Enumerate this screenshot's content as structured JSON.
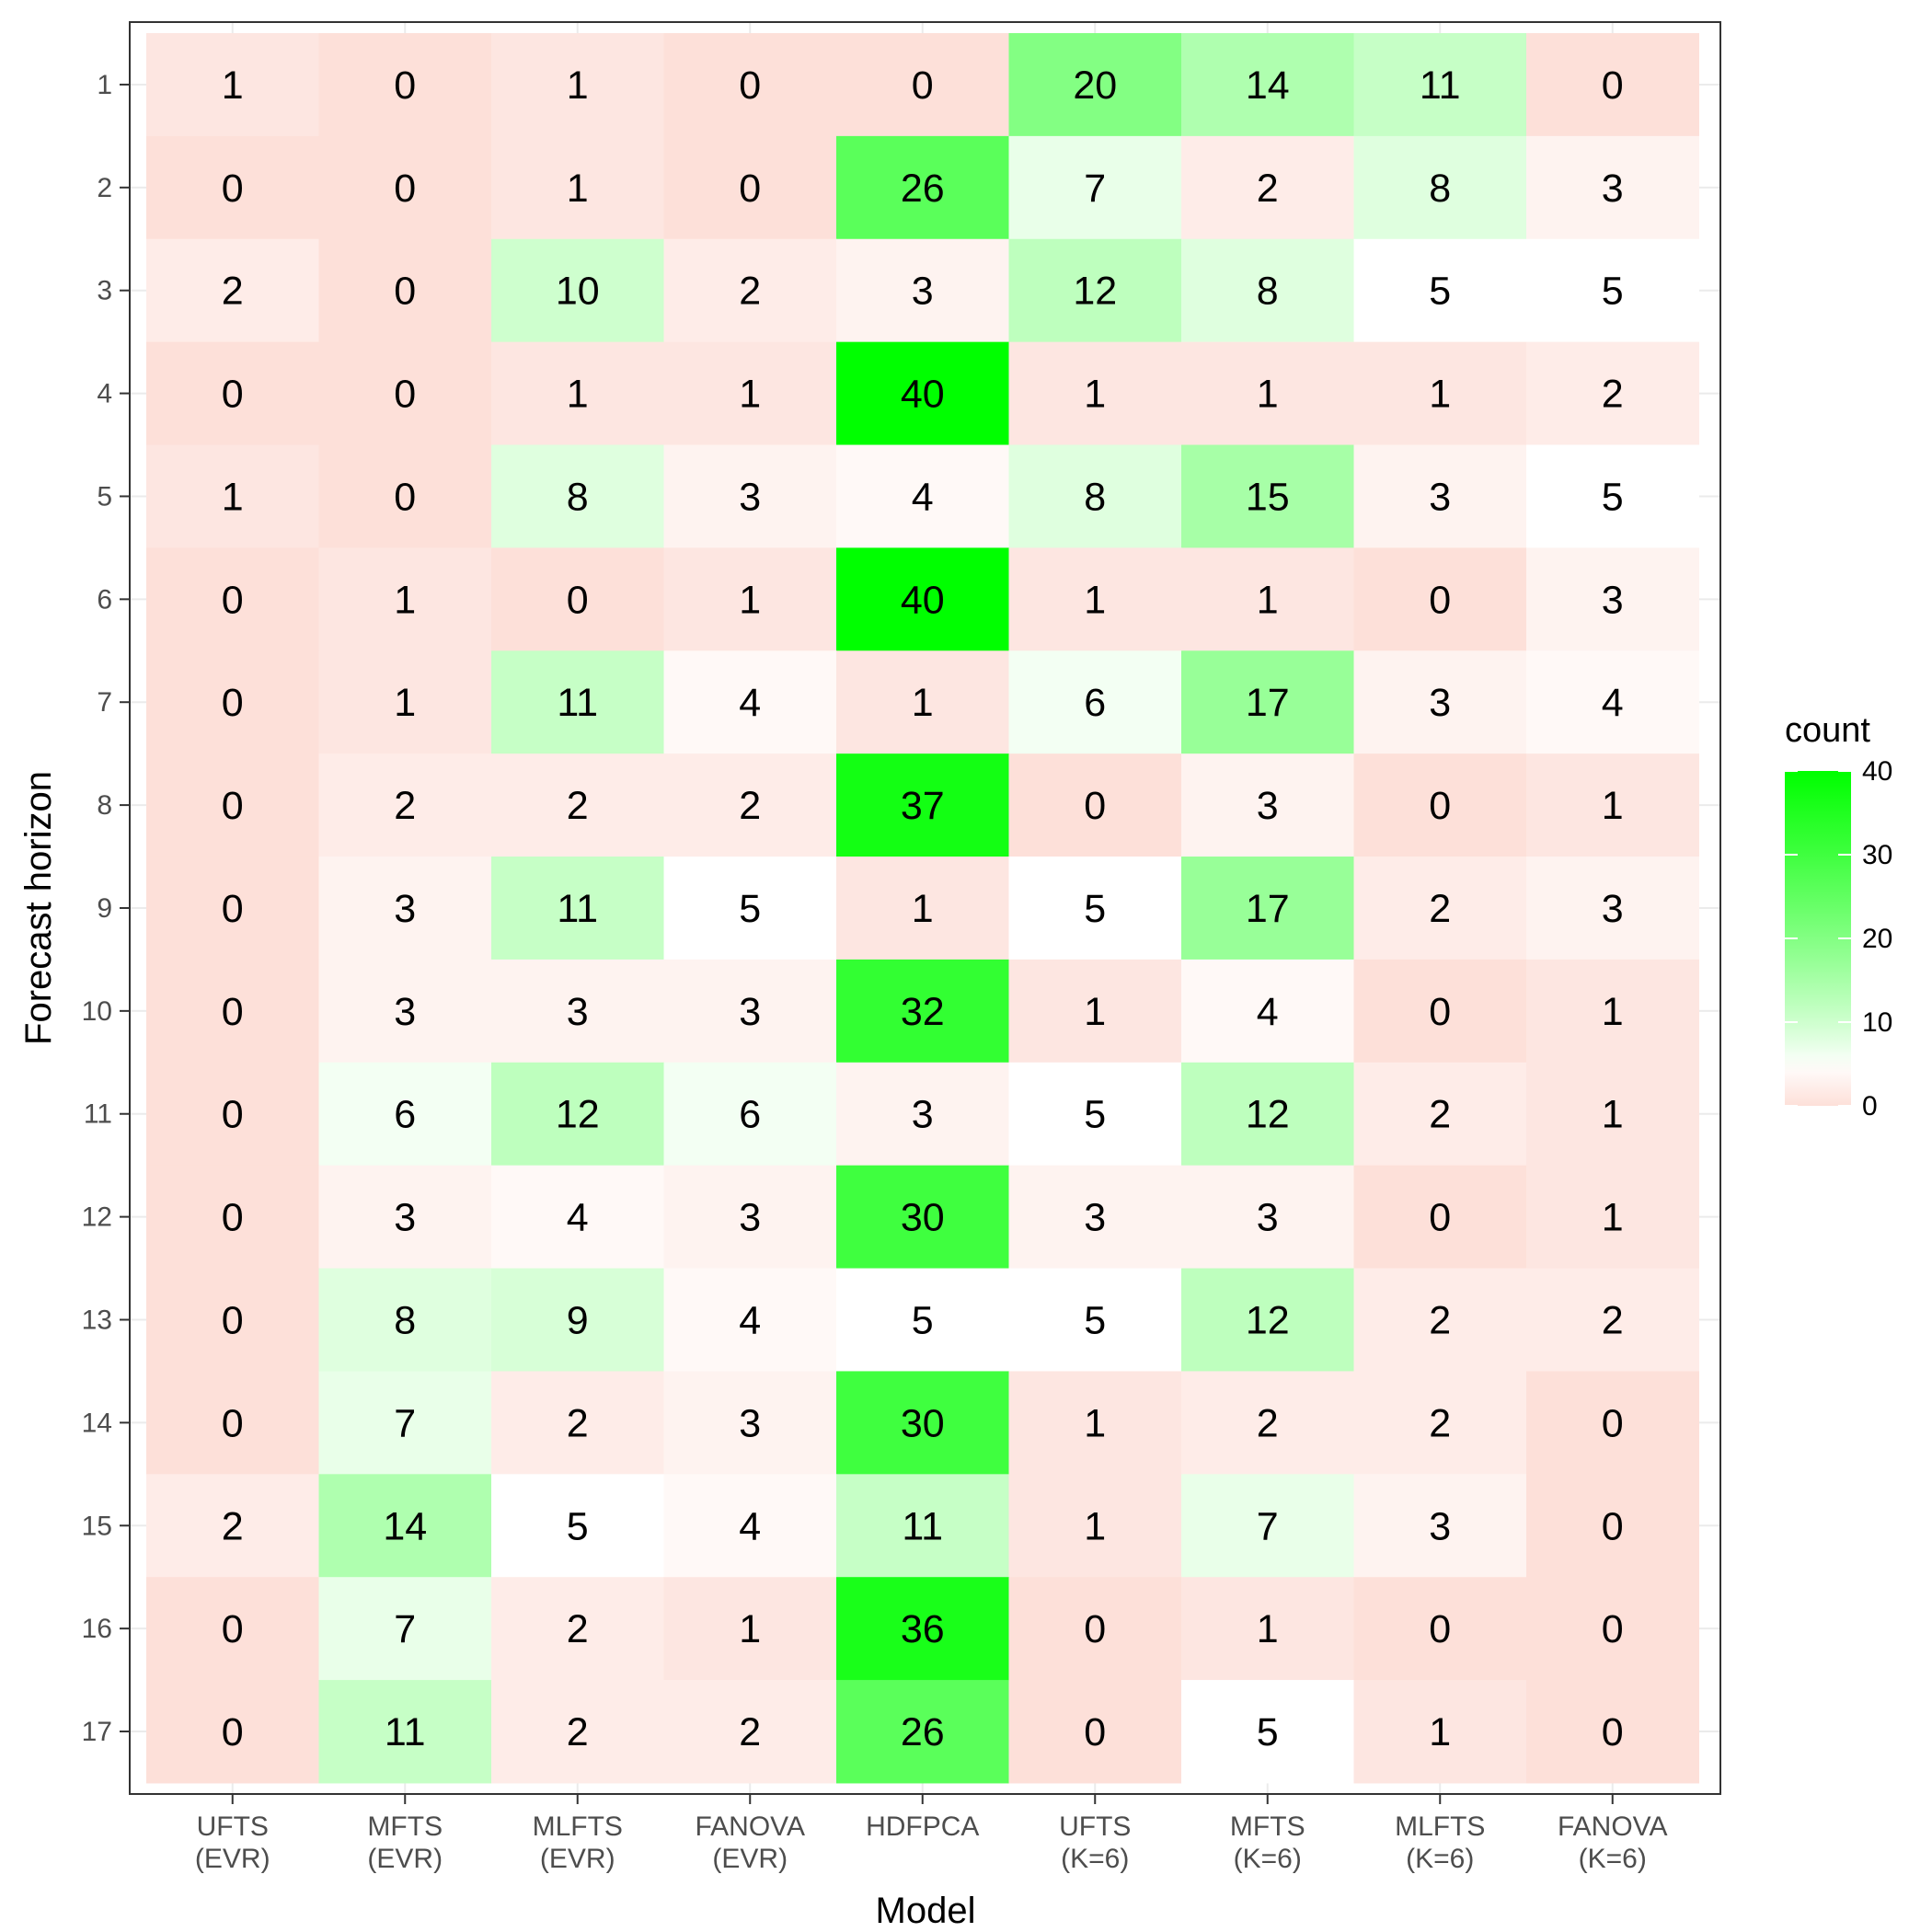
{
  "chart_data": {
    "type": "heatmap",
    "xlabel": "Model",
    "ylabel": "Forecast horizon",
    "x_categories": [
      [
        "UFTS",
        "(EVR)"
      ],
      [
        "MFTS",
        "(EVR)"
      ],
      [
        "MLFTS",
        "(EVR)"
      ],
      [
        "FANOVA",
        "(EVR)"
      ],
      [
        "HDFPCA"
      ],
      [
        "UFTS",
        "(K=6)"
      ],
      [
        "MFTS",
        "(K=6)"
      ],
      [
        "MLFTS",
        "(K=6)"
      ],
      [
        "FANOVA",
        "(K=6)"
      ]
    ],
    "y_categories": [
      "1",
      "2",
      "3",
      "4",
      "5",
      "6",
      "7",
      "8",
      "9",
      "10",
      "11",
      "12",
      "13",
      "14",
      "15",
      "16",
      "17"
    ],
    "values": [
      [
        1,
        0,
        1,
        0,
        0,
        20,
        14,
        11,
        0
      ],
      [
        0,
        0,
        1,
        0,
        26,
        7,
        2,
        8,
        3
      ],
      [
        2,
        0,
        10,
        2,
        3,
        12,
        8,
        5,
        5
      ],
      [
        0,
        0,
        1,
        1,
        40,
        1,
        1,
        1,
        2
      ],
      [
        1,
        0,
        8,
        3,
        4,
        8,
        15,
        3,
        5
      ],
      [
        0,
        1,
        0,
        1,
        40,
        1,
        1,
        0,
        3
      ],
      [
        0,
        1,
        11,
        4,
        1,
        6,
        17,
        3,
        4
      ],
      [
        0,
        2,
        2,
        2,
        37,
        0,
        3,
        0,
        1
      ],
      [
        0,
        3,
        11,
        5,
        1,
        5,
        17,
        2,
        3
      ],
      [
        0,
        3,
        3,
        3,
        32,
        1,
        4,
        0,
        1
      ],
      [
        0,
        6,
        12,
        6,
        3,
        5,
        12,
        2,
        1
      ],
      [
        0,
        3,
        4,
        3,
        30,
        3,
        3,
        0,
        1
      ],
      [
        0,
        8,
        9,
        4,
        5,
        5,
        12,
        2,
        2
      ],
      [
        0,
        7,
        2,
        3,
        30,
        1,
        2,
        2,
        0
      ],
      [
        2,
        14,
        5,
        4,
        11,
        1,
        7,
        3,
        0
      ],
      [
        0,
        7,
        2,
        1,
        36,
        0,
        1,
        0,
        0
      ],
      [
        0,
        11,
        2,
        2,
        26,
        0,
        5,
        1,
        0
      ]
    ],
    "color_scale": {
      "low": "#fde0d9",
      "mid": "#ffffff",
      "high": "#00ff00",
      "min": 0,
      "midpoint": 5,
      "max": 40
    },
    "legend": {
      "title": "count",
      "ticks": [
        0,
        10,
        20,
        30,
        40
      ],
      "placement": "right"
    },
    "grid": true
  }
}
